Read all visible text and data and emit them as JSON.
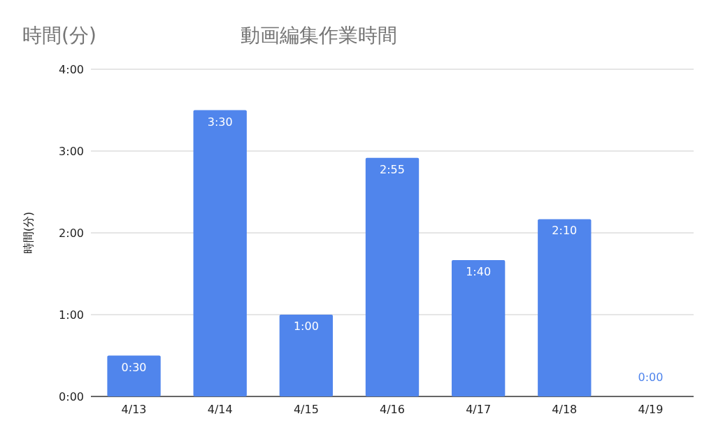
{
  "chart_data": {
    "type": "bar",
    "title": "動画編集作業時間",
    "annotations": [
      "時間(分)"
    ],
    "ylabel": "時間(分)",
    "categories": [
      "4/13",
      "4/14",
      "4/15",
      "4/16",
      "4/17",
      "4/18",
      "4/19"
    ],
    "values": [
      0.5,
      3.5,
      1,
      2.9167,
      1.6667,
      2.1667,
      0
    ],
    "value_labels": [
      "0:30",
      "3:30",
      "1:00",
      "2:55",
      "1:40",
      "2:10",
      "0:00"
    ],
    "color": "#5085ec",
    "ylim": [
      0,
      4
    ],
    "yticks": [
      {
        "value": 0,
        "label": "0:00"
      },
      {
        "value": 1,
        "label": "1:00"
      },
      {
        "value": 2,
        "label": "2:00"
      },
      {
        "value": 3,
        "label": "3:00"
      },
      {
        "value": 4,
        "label": "4:00"
      }
    ],
    "grid": "y"
  }
}
